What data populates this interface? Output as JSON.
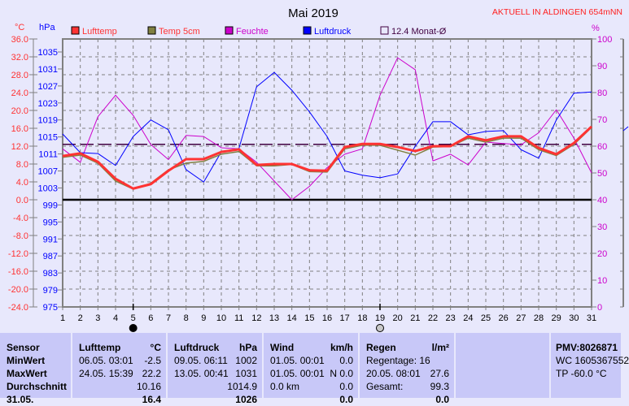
{
  "title": "Mai 2019",
  "station_label": "AKTUELL IN ALDINGEN 654mNN",
  "axis_units": {
    "temp": "°C",
    "pressure": "hPa",
    "humidity": "%"
  },
  "legend": [
    {
      "label": "Lufttemp",
      "color": "#ff3333"
    },
    {
      "label": "Temp 5cm",
      "color": "#808040"
    },
    {
      "label": "Feuchte",
      "color": "#cc00cc"
    },
    {
      "label": "Luftdruck",
      "color": "#0000ff"
    },
    {
      "label": "12.4 Monat-Ø",
      "color": "#400040"
    }
  ],
  "colors": {
    "temp": "#ff3333",
    "temp5": "#808040",
    "humidity": "#cc00cc",
    "pressure": "#0000ff",
    "mean": "#400040",
    "grid": "#808080"
  },
  "moon_phases": [
    {
      "day": 5,
      "phase": "new-moon"
    },
    {
      "day": 19,
      "phase": "full-moon"
    }
  ],
  "chart_data": {
    "type": "line",
    "title": "Mai 2019",
    "x": [
      1,
      2,
      3,
      4,
      5,
      6,
      7,
      8,
      9,
      10,
      11,
      12,
      13,
      14,
      15,
      16,
      17,
      18,
      19,
      20,
      21,
      22,
      23,
      24,
      25,
      26,
      27,
      28,
      29,
      30,
      31
    ],
    "x_ticks": [
      "1",
      "2",
      "3",
      "4",
      "5",
      "6",
      "7",
      "8",
      "9",
      "10",
      "11",
      "12",
      "13",
      "14",
      "15",
      "16",
      "17",
      "18",
      "19",
      "20",
      "21",
      "22",
      "23",
      "24",
      "25",
      "26",
      "27",
      "28",
      "29",
      "30",
      "31"
    ],
    "temp_ticks": [
      "36.0",
      "32.0",
      "28.0",
      "24.0",
      "20.0",
      "16.0",
      "12.0",
      "8.0",
      "4.0",
      "0.0",
      "-4.0",
      "-8.0",
      "-12.0",
      "-16.0",
      "-20.0",
      "-24.0"
    ],
    "pressure_ticks": [
      "1035",
      "1031",
      "1027",
      "1023",
      "1019",
      "1015",
      "1011",
      "1007",
      "1003",
      "999",
      "995",
      "991",
      "987",
      "983",
      "979",
      "975"
    ],
    "humidity_ticks": [
      "100",
      "90",
      "80",
      "70",
      "60",
      "50",
      "40",
      "30",
      "20",
      "10",
      "0"
    ],
    "ylim_temp": [
      -24,
      36
    ],
    "ylim_pressure": [
      975,
      1035
    ],
    "ylim_humidity": [
      0,
      100
    ],
    "mean_temp": 12.4,
    "series": [
      {
        "name": "Lufttemp",
        "axis": "temp",
        "values": [
          9.8,
          10.4,
          8.5,
          4.7,
          2.5,
          3.5,
          6.5,
          9.1,
          9.1,
          10.7,
          11.3,
          7.8,
          8.0,
          8.0,
          6.6,
          6.5,
          11.8,
          12.5,
          12.5,
          11.8,
          10.9,
          12.0,
          12.0,
          14.2,
          13.3,
          14.2,
          14.2,
          11.6,
          10.2,
          12.7,
          16.4
        ]
      },
      {
        "name": "Temp 5cm",
        "axis": "temp",
        "values": [
          9.5,
          10.0,
          8.2,
          4.2,
          2.4,
          3.7,
          6.7,
          8.2,
          8.6,
          10.2,
          10.8,
          7.6,
          7.6,
          7.9,
          6.3,
          6.2,
          11.4,
          12.2,
          12.2,
          11.1,
          10.0,
          11.8,
          11.9,
          13.8,
          12.9,
          13.8,
          13.8,
          11.2,
          9.9,
          12.4,
          16.2
        ]
      },
      {
        "name": "Feuchte",
        "axis": "humidity",
        "values": [
          59,
          54,
          71,
          79,
          71.5,
          60.6,
          55,
          64,
          63.6,
          59.4,
          59,
          54,
          47,
          40,
          45,
          52,
          57,
          59,
          79,
          93,
          88.5,
          54.5,
          57,
          53,
          61.5,
          61,
          60.5,
          65,
          73.6,
          63,
          50
        ]
      },
      {
        "name": "Luftdruck",
        "axis": "pressure",
        "values": [
          1015.7,
          1011.3,
          1011.1,
          1008.3,
          1015.1,
          1019,
          1016.7,
          1007.3,
          1004.4,
          1011.5,
          1012.3,
          1026.8,
          1030.2,
          1026,
          1020.9,
          1015.1,
          1007,
          1006,
          1005.4,
          1006.3,
          1012.8,
          1018.6,
          1018.6,
          1015.5,
          1016.3,
          1016.5,
          1012,
          1010,
          1019,
          1025.3,
          1025.6
        ]
      }
    ],
    "grid": true,
    "legend_position": "top"
  },
  "table": {
    "sensor": {
      "header": "Sensor",
      "rows": [
        "MinWert",
        "MaxWert",
        "Durchschnitt",
        "31.05."
      ]
    },
    "lufttemp": {
      "header": "Lufttemp",
      "unit": "°C",
      "min_time": "06.05.  03:01",
      "min": "-2.5",
      "max_time": "24.05.  15:39",
      "max": "22.2",
      "avg": "10.16",
      "current": "16.4"
    },
    "luftdruck": {
      "header": "Luftdruck",
      "unit": "hPa",
      "min_time": "09.05.  06:11",
      "min": "1002",
      "max_time": "13.05.  00:41",
      "max": "1031",
      "avg": "1014.9",
      "current": "1026"
    },
    "wind": {
      "header": "Wind",
      "unit": "km/h",
      "min_time": "01.05.  00:01",
      "min": "0.0",
      "max_time": "01.05.  00:01",
      "max": "N 0.0",
      "avg_label": "0.0 km",
      "avg": "0.0",
      "current": "0.0"
    },
    "regen": {
      "header": "Regen",
      "unit": "l/m²",
      "days": "Regentage: 16",
      "max_time": "20.05.  08:01",
      "max": "27.6",
      "total_label": "Gesamt:",
      "total": "99.3",
      "current": "0.0"
    },
    "pmv": {
      "header": "PMV:8026871",
      "wc": "WC 1605367552",
      "tp": "TP -60.0 °C"
    }
  }
}
